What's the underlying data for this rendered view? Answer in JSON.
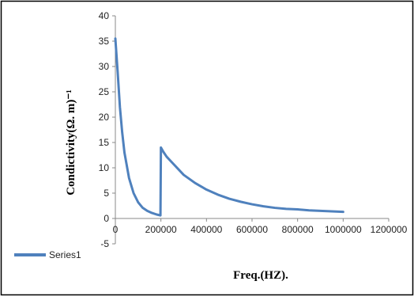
{
  "chart_data": {
    "type": "line",
    "title": "",
    "xlabel": "Freq.(HZ).",
    "ylabel": "Condictivity(Ω. m)⁻¹",
    "xlim": [
      0,
      1200000
    ],
    "ylim": [
      -5,
      40
    ],
    "x_ticks": [
      0,
      200000,
      400000,
      600000,
      800000,
      1000000,
      1200000
    ],
    "y_ticks": [
      -5,
      0,
      5,
      10,
      15,
      20,
      25,
      30,
      35,
      40
    ],
    "x_tick_labels": [
      "0",
      "200000",
      "400000",
      "600000",
      "800000",
      "1000000",
      "1200000"
    ],
    "y_tick_labels": [
      "-5",
      "0",
      "5",
      "10",
      "15",
      "20",
      "25",
      "30",
      "35",
      "40"
    ],
    "grid": false,
    "legend_position": "bottom-left",
    "series": [
      {
        "name": "Series1",
        "color": "#4f81bd",
        "x": [
          0,
          10000,
          20000,
          30000,
          40000,
          50000,
          60000,
          70000,
          80000,
          100000,
          120000,
          140000,
          160000,
          180000,
          198000,
          200000,
          210000,
          225000,
          250000,
          300000,
          350000,
          400000,
          450000,
          500000,
          550000,
          600000,
          650000,
          700000,
          750000,
          800000,
          850000,
          900000,
          950000,
          1000000
        ],
        "y": [
          35.5,
          29,
          22,
          17,
          13,
          10.5,
          8,
          6.5,
          5,
          3.2,
          2.1,
          1.5,
          1.1,
          0.8,
          0.6,
          14,
          13.2,
          12.2,
          11,
          8.6,
          7,
          5.7,
          4.7,
          3.9,
          3.3,
          2.8,
          2.4,
          2.1,
          1.9,
          1.8,
          1.6,
          1.5,
          1.4,
          1.3
        ]
      }
    ]
  }
}
